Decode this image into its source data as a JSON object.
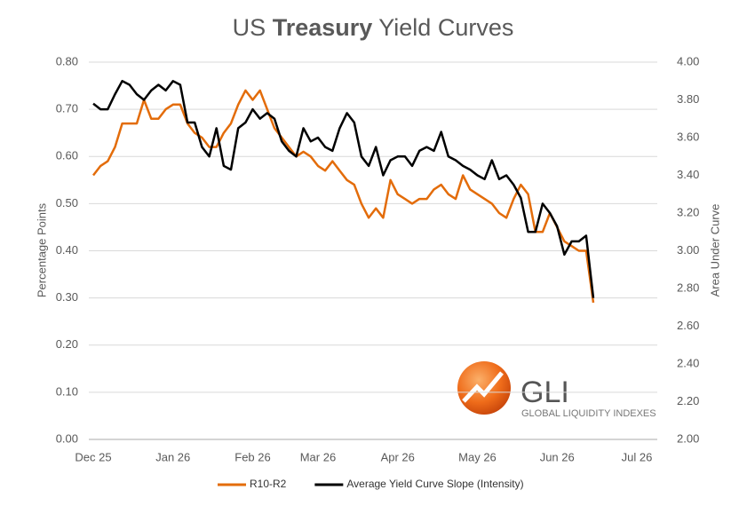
{
  "chart_data": {
    "type": "line",
    "title": [
      "US",
      "Treasury",
      "Yield Curves"
    ],
    "y_label": "Percentage Points",
    "y2_label": "Area Under Curve",
    "categories": [
      "Dec 25",
      null,
      null,
      null,
      null,
      null,
      null,
      null,
      null,
      null,
      null,
      "Jan 26",
      null,
      null,
      null,
      null,
      null,
      null,
      null,
      null,
      null,
      null,
      "Feb 26",
      null,
      null,
      null,
      null,
      null,
      null,
      null,
      null,
      "Mar 26",
      null,
      null,
      null,
      null,
      null,
      null,
      null,
      null,
      null,
      null,
      "Apr 26",
      null,
      null,
      null,
      null,
      null,
      null,
      null,
      null,
      null,
      null,
      "May 26",
      null,
      null,
      null,
      null,
      null,
      null,
      null,
      null,
      null,
      null,
      "Jun 26",
      null,
      null,
      null,
      null,
      null,
      null,
      null,
      null,
      null,
      null,
      "Jul 26"
    ],
    "series": [
      {
        "name": "R10-R2",
        "color": "#e36c0a",
        "axis": "y",
        "values": [
          0.56,
          0.58,
          0.59,
          0.62,
          0.67,
          0.67,
          0.67,
          0.72,
          0.68,
          0.68,
          0.7,
          0.71,
          0.71,
          0.67,
          0.65,
          0.64,
          0.62,
          0.62,
          0.65,
          0.67,
          0.71,
          0.74,
          0.72,
          0.74,
          0.7,
          0.66,
          0.64,
          0.62,
          0.6,
          0.61,
          0.6,
          0.58,
          0.57,
          0.59,
          0.57,
          0.55,
          0.54,
          0.5,
          0.47,
          0.49,
          0.47,
          0.55,
          0.52,
          0.51,
          0.5,
          0.51,
          0.51,
          0.53,
          0.54,
          0.52,
          0.51,
          0.56,
          0.53,
          0.52,
          0.51,
          0.5,
          0.48,
          0.47,
          0.51,
          0.54,
          0.52,
          0.44,
          0.44,
          0.48,
          0.45,
          0.42,
          0.41,
          0.4,
          0.4,
          0.29,
          null,
          null,
          null,
          null,
          null,
          null
        ]
      },
      {
        "name": "Average Yield Curve Slope (Intensity)",
        "color": "#000000",
        "axis": "y2",
        "values": [
          3.78,
          3.75,
          3.75,
          3.83,
          3.9,
          3.88,
          3.83,
          3.8,
          3.85,
          3.88,
          3.85,
          3.9,
          3.88,
          3.68,
          3.68,
          3.55,
          3.5,
          3.65,
          3.45,
          3.43,
          3.65,
          3.68,
          3.75,
          3.7,
          3.73,
          3.7,
          3.58,
          3.53,
          3.5,
          3.65,
          3.58,
          3.6,
          3.55,
          3.53,
          3.65,
          3.73,
          3.68,
          3.5,
          3.45,
          3.55,
          3.4,
          3.48,
          3.5,
          3.5,
          3.45,
          3.53,
          3.55,
          3.53,
          3.63,
          3.5,
          3.48,
          3.45,
          3.43,
          3.4,
          3.38,
          3.48,
          3.38,
          3.4,
          3.35,
          3.28,
          3.1,
          3.1,
          3.25,
          3.2,
          3.13,
          2.98,
          3.05,
          3.05,
          3.08,
          2.75,
          null,
          null,
          null,
          null,
          null,
          null
        ]
      }
    ],
    "ylim": [
      0,
      0.8
    ],
    "yticks": [
      {
        "value": 0,
        "label": "0.00"
      },
      {
        "value": 0.1,
        "label": "0.10"
      },
      {
        "value": 0.2,
        "label": "0.20"
      },
      {
        "value": 0.3,
        "label": "0.30"
      },
      {
        "value": 0.4,
        "label": "0.40"
      },
      {
        "value": 0.5,
        "label": "0.50"
      },
      {
        "value": 0.6,
        "label": "0.60"
      },
      {
        "value": 0.7,
        "label": "0.70"
      },
      {
        "value": 0.8,
        "label": "0.80"
      }
    ],
    "y2lim": [
      2,
      4
    ],
    "y2ticks": [
      {
        "value": 2,
        "label": "2.00"
      },
      {
        "value": 2.2,
        "label": "2.20"
      },
      {
        "value": 2.4,
        "label": "2.40"
      },
      {
        "value": 2.6,
        "label": "2.60"
      },
      {
        "value": 2.8,
        "label": "2.80"
      },
      {
        "value": 3,
        "label": "3.00"
      },
      {
        "value": 3.2,
        "label": "3.20"
      },
      {
        "value": 3.4,
        "label": "3.40"
      },
      {
        "value": 3.6,
        "label": "3.60"
      },
      {
        "value": 3.8,
        "label": "3.80"
      },
      {
        "value": 4,
        "label": "4.00"
      }
    ],
    "grid": true,
    "legend": "bottom"
  },
  "logo": {
    "text": "GLI",
    "subtitle": "GLOBAL LIQUIDITY INDEXES"
  }
}
